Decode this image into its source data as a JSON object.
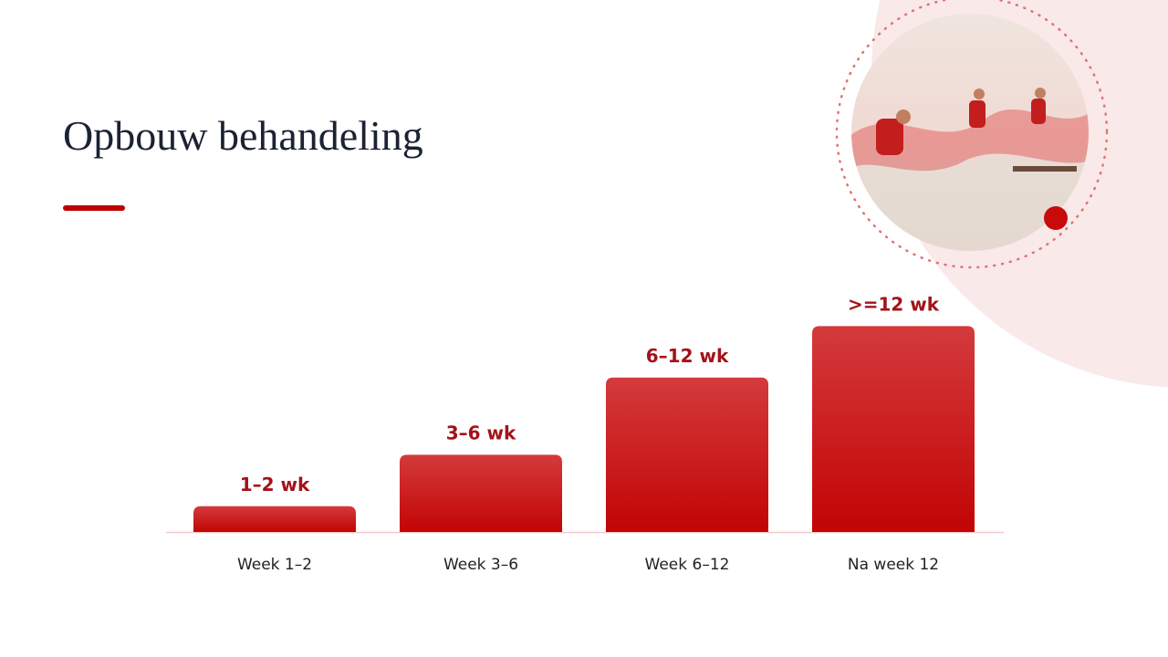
{
  "chart_data": {
    "type": "bar",
    "title": "Opbouw behandeling",
    "categories": [
      "Week 1–2",
      "Week 3–6",
      "Week 6–12",
      "Na week 12"
    ],
    "values": [
      1,
      3,
      6,
      8
    ],
    "annotations": [
      "1–2 wk",
      "3–6 wk",
      "6–12 wk",
      ">=12 wk"
    ],
    "color": "#c00000"
  }
}
